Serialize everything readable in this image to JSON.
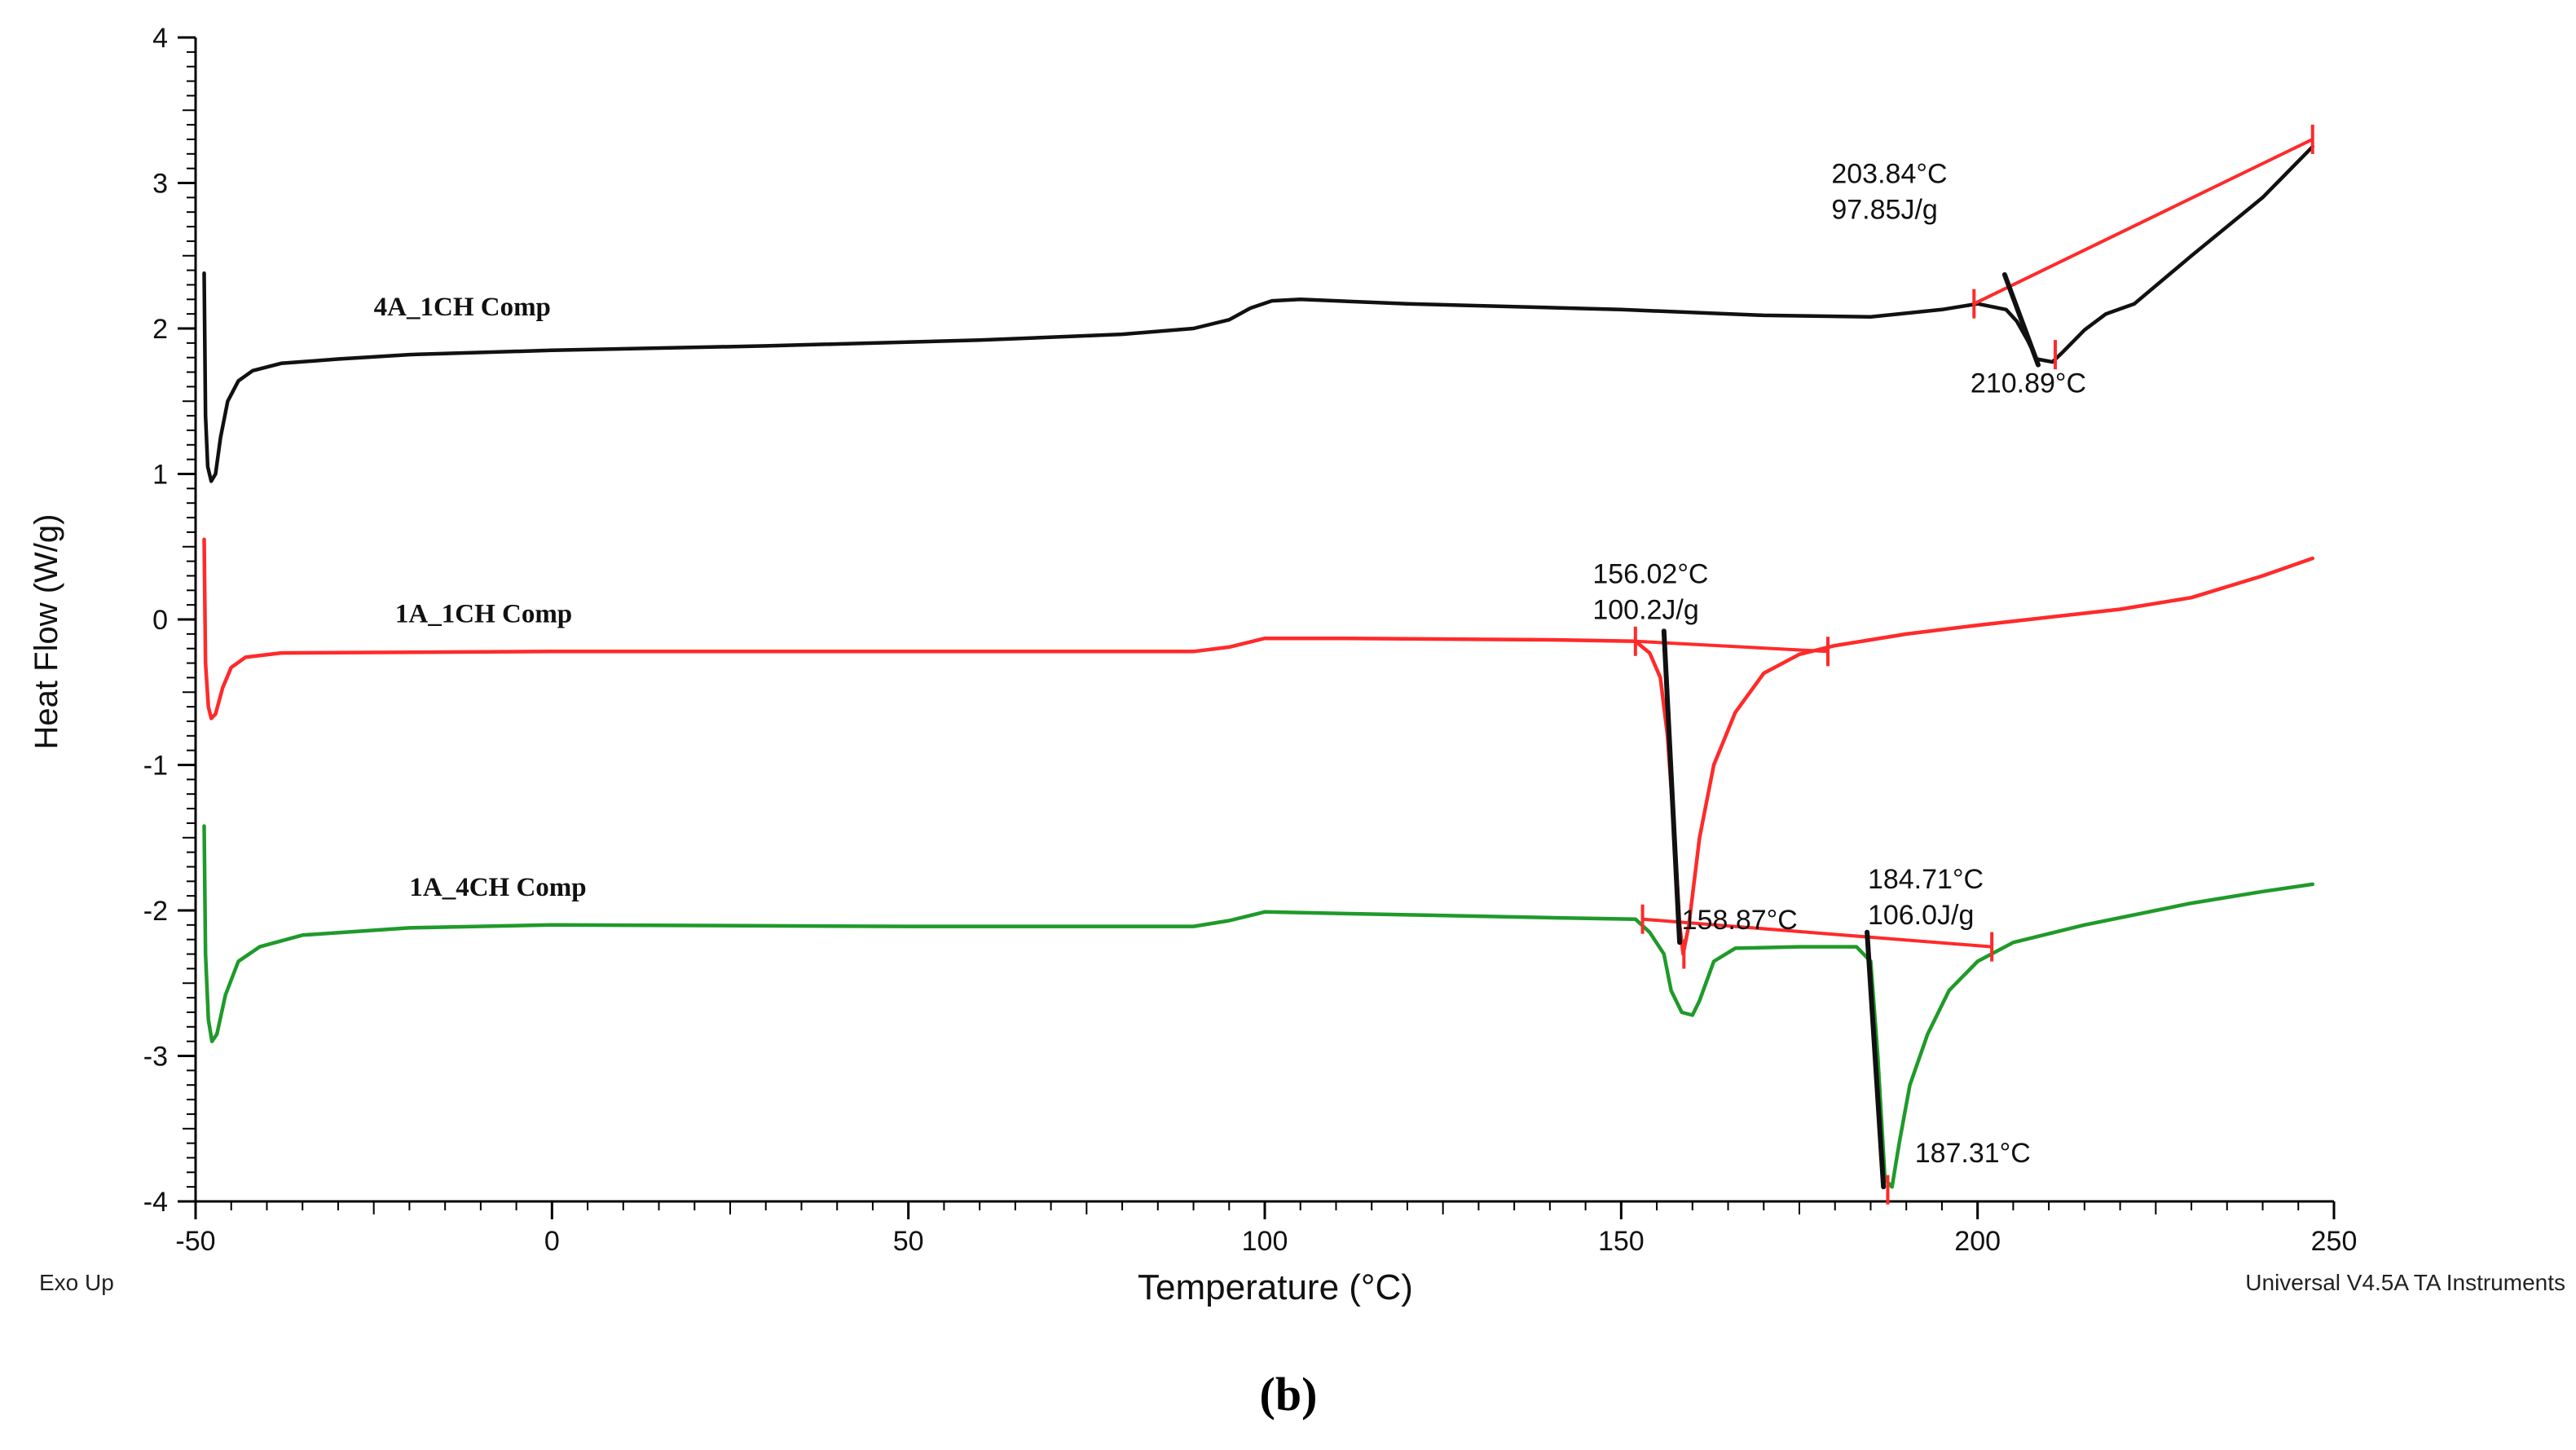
{
  "chart_data": {
    "type": "line",
    "title": "",
    "xlabel": "Temperature (°C)",
    "ylabel": "Heat Flow (W/g)",
    "xlim": [
      -50,
      250
    ],
    "ylim": [
      -4,
      4
    ],
    "x_ticks": [
      -50,
      0,
      50,
      100,
      150,
      200,
      250
    ],
    "y_ticks": [
      4,
      3,
      2,
      1,
      0,
      -1,
      -2,
      -3,
      -4
    ],
    "grid": false,
    "corner_left": "Exo Up",
    "corner_right": "Universal V4.5A TA Instruments",
    "panel_label": "(b)",
    "colors": {
      "series_black": "#111111",
      "series_red": "#ff2a2a",
      "series_green": "#1f9a2a",
      "baseline": "#ff2a2a",
      "axis": "#000000"
    },
    "series": [
      {
        "name": "4A_1CH Comp",
        "color": "#111111",
        "points": [
          [
            -48.8,
            2.38
          ],
          [
            -48.6,
            1.4
          ],
          [
            -48.3,
            1.05
          ],
          [
            -47.8,
            0.95
          ],
          [
            -47.2,
            1.0
          ],
          [
            -46.5,
            1.25
          ],
          [
            -45.5,
            1.5
          ],
          [
            -44,
            1.64
          ],
          [
            -42,
            1.71
          ],
          [
            -38,
            1.76
          ],
          [
            -30,
            1.79
          ],
          [
            -20,
            1.82
          ],
          [
            0,
            1.85
          ],
          [
            30,
            1.88
          ],
          [
            60,
            1.92
          ],
          [
            80,
            1.96
          ],
          [
            90,
            2.0
          ],
          [
            95,
            2.06
          ],
          [
            98,
            2.14
          ],
          [
            101,
            2.19
          ],
          [
            105,
            2.2
          ],
          [
            120,
            2.17
          ],
          [
            150,
            2.13
          ],
          [
            170,
            2.09
          ],
          [
            185,
            2.08
          ],
          [
            195,
            2.13
          ],
          [
            200,
            2.17
          ],
          [
            204,
            2.13
          ],
          [
            205.5,
            2.05
          ],
          [
            207,
            1.92
          ],
          [
            208.3,
            1.79
          ],
          [
            210.5,
            1.77
          ],
          [
            212,
            1.84
          ],
          [
            215,
            1.99
          ],
          [
            218,
            2.1
          ],
          [
            222,
            2.17
          ],
          [
            230,
            2.5
          ],
          [
            240,
            2.9
          ],
          [
            247,
            3.25
          ]
        ]
      },
      {
        "name": "1A_1CH Comp",
        "color": "#ff2a2a",
        "points": [
          [
            -48.8,
            0.55
          ],
          [
            -48.6,
            -0.3
          ],
          [
            -48.2,
            -0.6
          ],
          [
            -47.8,
            -0.68
          ],
          [
            -47.2,
            -0.65
          ],
          [
            -46.2,
            -0.47
          ],
          [
            -45,
            -0.33
          ],
          [
            -43,
            -0.26
          ],
          [
            -38,
            -0.23
          ],
          [
            0,
            -0.22
          ],
          [
            50,
            -0.22
          ],
          [
            90,
            -0.22
          ],
          [
            95,
            -0.19
          ],
          [
            100,
            -0.13
          ],
          [
            110,
            -0.13
          ],
          [
            140,
            -0.14
          ],
          [
            152,
            -0.15
          ],
          [
            154,
            -0.23
          ],
          [
            155.5,
            -0.4
          ],
          [
            156.5,
            -0.8
          ],
          [
            157.5,
            -1.5
          ],
          [
            158.2,
            -2.1
          ],
          [
            158.7,
            -2.3
          ],
          [
            159.5,
            -2.1
          ],
          [
            161,
            -1.5
          ],
          [
            163,
            -1.0
          ],
          [
            166,
            -0.64
          ],
          [
            170,
            -0.37
          ],
          [
            175,
            -0.24
          ],
          [
            180,
            -0.18
          ],
          [
            190,
            -0.1
          ],
          [
            200,
            -0.04
          ],
          [
            220,
            0.07
          ],
          [
            230,
            0.15
          ],
          [
            240,
            0.3
          ],
          [
            247,
            0.42
          ]
        ]
      },
      {
        "name": "1A_4CH Comp",
        "color": "#1f9a2a",
        "points": [
          [
            -48.8,
            -1.42
          ],
          [
            -48.6,
            -2.3
          ],
          [
            -48.2,
            -2.75
          ],
          [
            -47.7,
            -2.9
          ],
          [
            -47,
            -2.85
          ],
          [
            -45.8,
            -2.58
          ],
          [
            -44,
            -2.35
          ],
          [
            -41,
            -2.25
          ],
          [
            -35,
            -2.17
          ],
          [
            -20,
            -2.12
          ],
          [
            0,
            -2.1
          ],
          [
            50,
            -2.11
          ],
          [
            90,
            -2.11
          ],
          [
            95,
            -2.07
          ],
          [
            100,
            -2.01
          ],
          [
            110,
            -2.02
          ],
          [
            140,
            -2.05
          ],
          [
            152,
            -2.06
          ],
          [
            154,
            -2.15
          ],
          [
            156,
            -2.3
          ],
          [
            157,
            -2.55
          ],
          [
            158.5,
            -2.7
          ],
          [
            160,
            -2.72
          ],
          [
            161,
            -2.62
          ],
          [
            163,
            -2.35
          ],
          [
            166,
            -2.26
          ],
          [
            175,
            -2.25
          ],
          [
            183,
            -2.25
          ],
          [
            185,
            -2.35
          ],
          [
            186,
            -3.0
          ],
          [
            187,
            -3.85
          ],
          [
            188,
            -3.9
          ],
          [
            189,
            -3.6
          ],
          [
            190.5,
            -3.2
          ],
          [
            193,
            -2.85
          ],
          [
            196,
            -2.55
          ],
          [
            200,
            -2.35
          ],
          [
            205,
            -2.22
          ],
          [
            215,
            -2.1
          ],
          [
            230,
            -1.95
          ],
          [
            240,
            -1.87
          ],
          [
            247,
            -1.82
          ]
        ]
      }
    ],
    "labels": [
      {
        "text": "4A_1CH Comp",
        "x": -25,
        "y": 2.09
      },
      {
        "text": "1A_1CH Comp",
        "x": -22,
        "y": -0.02
      },
      {
        "text": "1A_4CH Comp",
        "x": -20,
        "y": -1.9
      }
    ],
    "annotations": [
      {
        "lines": [
          "203.84°C",
          "97.85J/g"
        ],
        "x": 179.5,
        "y": 3.0
      },
      {
        "lines": [
          "210.89°C"
        ],
        "x": 199,
        "y": 1.56
      },
      {
        "lines": [
          "156.02°C",
          "100.2J/g"
        ],
        "x": 146,
        "y": 0.25
      },
      {
        "lines": [
          "158.87°C"
        ],
        "x": 158.5,
        "y": -2.13
      },
      {
        "lines": [
          "184.71°C",
          "106.0J/g"
        ],
        "x": 184.6,
        "y": -1.85
      },
      {
        "lines": [
          "187.31°C"
        ],
        "x": 191.2,
        "y": -3.73
      }
    ],
    "baselines": [
      {
        "from": [
          199.5,
          2.17
        ],
        "to": [
          247,
          3.3
        ]
      },
      {
        "from": [
          152,
          -0.15
        ],
        "to": [
          179,
          -0.22
        ]
      },
      {
        "from": [
          153,
          -2.06
        ],
        "to": [
          202,
          -2.25
        ]
      }
    ],
    "onset_tangents": [
      {
        "from": [
          203.8,
          2.37
        ],
        "to": [
          208.5,
          1.75
        ]
      },
      {
        "from": [
          156.0,
          -0.08
        ],
        "to": [
          158.2,
          -2.22
        ]
      },
      {
        "from": [
          184.5,
          -2.15
        ],
        "to": [
          186.8,
          -3.9
        ]
      }
    ],
    "ticks_on_curves": [
      [
        199.5,
        2.17
      ],
      [
        210.9,
        1.82
      ],
      [
        247,
        3.3
      ],
      [
        152,
        -0.15
      ],
      [
        158.8,
        -2.3
      ],
      [
        179,
        -0.22
      ],
      [
        153,
        -2.06
      ],
      [
        187.4,
        -3.92
      ],
      [
        202,
        -2.25
      ]
    ]
  }
}
